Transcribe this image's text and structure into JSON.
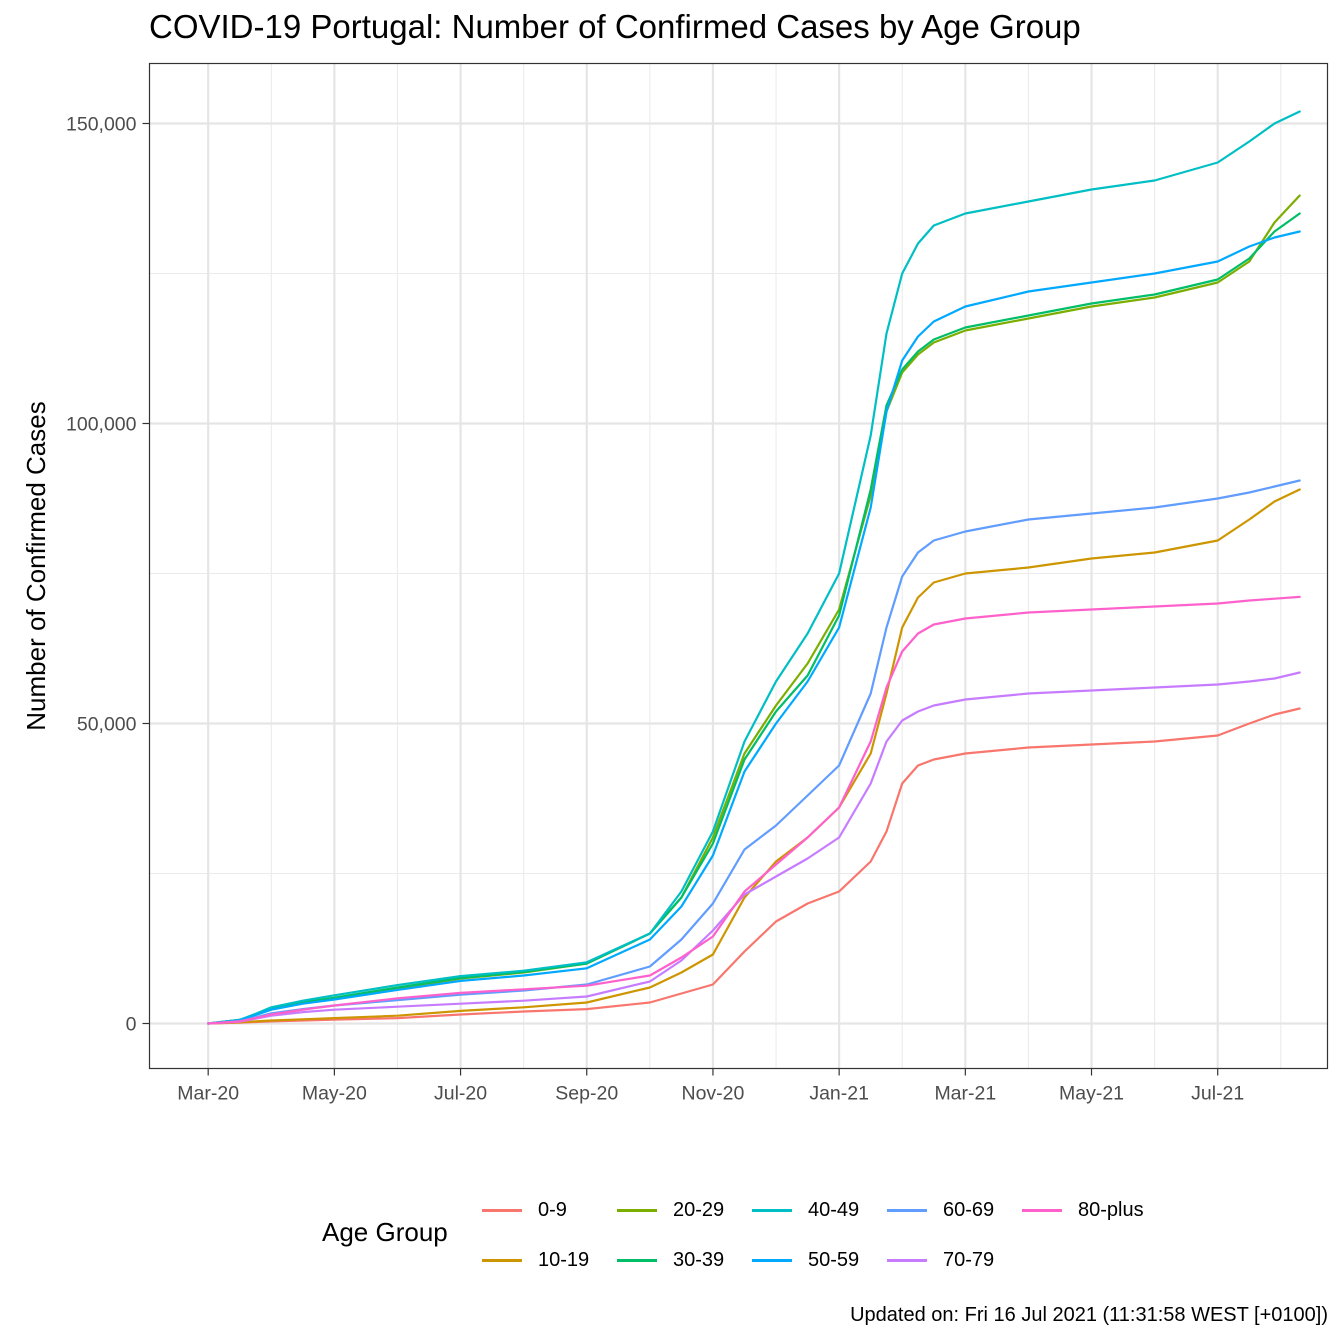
{
  "title": "COVID-19 Portugal: Number of Confirmed Cases by Age Group",
  "caption": "Updated on: Fri 16 Jul 2021 (11:31:58 WEST [+0100])",
  "chart_data": {
    "type": "line",
    "xlabel": "",
    "ylabel": "Number of Confirmed Cases",
    "x_tick_labels": [
      "Mar-20",
      "May-20",
      "Jul-20",
      "Sep-20",
      "Nov-20",
      "Jan-21",
      "Mar-21",
      "May-21",
      "Jul-21"
    ],
    "y_tick_labels": [
      "0",
      "50,000",
      "100,000",
      "150,000"
    ],
    "y_ticks": [
      0,
      50000,
      100000,
      150000
    ],
    "ylim": [
      -7500,
      160000
    ],
    "grid": true,
    "legend_title": "Age Group",
    "legend_position": "bottom",
    "x_unit": "months since 2020-03-01",
    "xlim": [
      -0.93,
      17.74
    ],
    "x": [
      0.0,
      0.5,
      0.75,
      1.0,
      1.5,
      2.0,
      3.0,
      4.0,
      5.0,
      6.0,
      7.0,
      7.5,
      8.0,
      8.5,
      9.0,
      9.5,
      10.0,
      10.5,
      10.75,
      11.0,
      11.25,
      11.5,
      12.0,
      13.0,
      14.0,
      15.0,
      16.0,
      16.5,
      16.9,
      17.3
    ],
    "series": [
      {
        "name": "0-9",
        "color": "#F8766D",
        "values": [
          0,
          150,
          250,
          350,
          500,
          650,
          900,
          1500,
          2000,
          2400,
          3500,
          5000,
          6500,
          12000,
          17000,
          20000,
          22000,
          27000,
          32000,
          40000,
          43000,
          44000,
          45000,
          46000,
          46500,
          47000,
          48000,
          50000,
          51500,
          52500
        ]
      },
      {
        "name": "10-19",
        "color": "#CD9600",
        "values": [
          0,
          200,
          350,
          500,
          700,
          900,
          1300,
          2100,
          2700,
          3500,
          6000,
          8500,
          11500,
          21000,
          27000,
          31000,
          36000,
          45000,
          55000,
          66000,
          71000,
          73500,
          75000,
          76000,
          77500,
          78500,
          80500,
          84000,
          87000,
          89000
        ]
      },
      {
        "name": "20-29",
        "color": "#7CAE00",
        "values": [
          0,
          600,
          1500,
          2500,
          3500,
          4200,
          5800,
          7500,
          8500,
          10000,
          15000,
          21000,
          31000,
          45000,
          53000,
          60000,
          69000,
          88000,
          102000,
          108500,
          111500,
          113500,
          115500,
          117500,
          119500,
          121000,
          123500,
          127000,
          133500,
          138000
        ]
      },
      {
        "name": "30-39",
        "color": "#00BE67",
        "values": [
          0,
          600,
          1500,
          2500,
          3500,
          4300,
          6000,
          7600,
          8600,
          10000,
          15000,
          21000,
          30000,
          44000,
          52000,
          58000,
          68000,
          89000,
          103000,
          109000,
          112000,
          114000,
          116000,
          118000,
          120000,
          121500,
          124000,
          127500,
          132000,
          135000
        ]
      },
      {
        "name": "40-49",
        "color": "#00BFC4",
        "values": [
          0,
          600,
          1600,
          2700,
          3800,
          4700,
          6400,
          7900,
          8800,
          10200,
          15000,
          22000,
          32000,
          47000,
          57000,
          65000,
          75000,
          98000,
          115000,
          125000,
          130000,
          133000,
          135000,
          137000,
          139000,
          140500,
          143500,
          147000,
          150000,
          152000
        ]
      },
      {
        "name": "50-59",
        "color": "#00A9FF",
        "values": [
          0,
          550,
          1400,
          2300,
          3300,
          4000,
          5600,
          7100,
          8000,
          9200,
          14000,
          19500,
          28000,
          42000,
          50000,
          57000,
          66000,
          86000,
          102000,
          110500,
          114500,
          117000,
          119500,
          122000,
          123500,
          125000,
          127000,
          129500,
          131000,
          132000
        ]
      },
      {
        "name": "60-69",
        "color": "#619CFF",
        "values": [
          0,
          400,
          1000,
          1700,
          2400,
          3000,
          3900,
          4800,
          5500,
          6500,
          9500,
          14000,
          20000,
          29000,
          33000,
          38000,
          43000,
          55000,
          66000,
          74500,
          78500,
          80500,
          82000,
          84000,
          85000,
          86000,
          87500,
          88500,
          89500,
          90500
        ]
      },
      {
        "name": "70-79",
        "color": "#C77CFF",
        "values": [
          0,
          300,
          800,
          1300,
          1900,
          2300,
          2800,
          3300,
          3800,
          4500,
          7000,
          10500,
          15500,
          21500,
          24500,
          27500,
          31000,
          40000,
          47000,
          50500,
          52000,
          53000,
          54000,
          55000,
          55500,
          56000,
          56500,
          57000,
          57500,
          58500
        ]
      },
      {
        "name": "80-plus",
        "color": "#FF61CC",
        "values": [
          0,
          350,
          900,
          1500,
          2300,
          3000,
          4200,
          5100,
          5700,
          6300,
          8000,
          11000,
          14500,
          22000,
          26500,
          31000,
          36000,
          47000,
          56000,
          62000,
          65000,
          66500,
          67500,
          68500,
          69000,
          69500,
          70000,
          70500,
          70800,
          71100
        ]
      }
    ]
  }
}
